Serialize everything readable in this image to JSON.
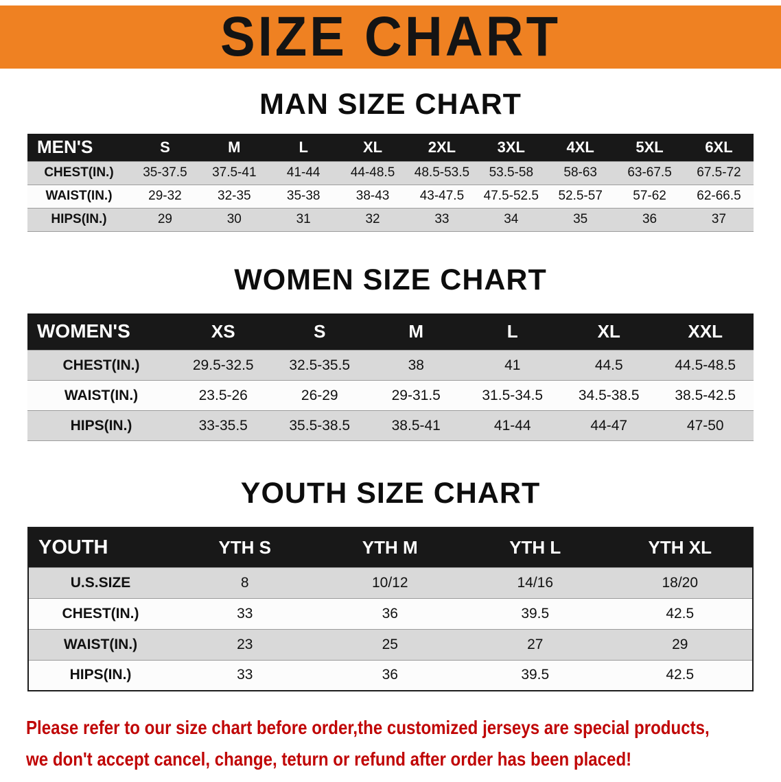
{
  "banner": {
    "title": "SIZE CHART",
    "bg_color": "#ef8122"
  },
  "sections": [
    {
      "id": "men",
      "heading": "MAN SIZE CHART",
      "table": {
        "header": [
          "MEN'S",
          "S",
          "M",
          "L",
          "XL",
          "2XL",
          "3XL",
          "4XL",
          "5XL",
          "6XL"
        ],
        "rows": [
          [
            "CHEST(IN.)",
            "35-37.5",
            "37.5-41",
            "41-44",
            "44-48.5",
            "48.5-53.5",
            "53.5-58",
            "58-63",
            "63-67.5",
            "67.5-72"
          ],
          [
            "WAIST(IN.)",
            "29-32",
            "32-35",
            "35-38",
            "38-43",
            "43-47.5",
            "47.5-52.5",
            "52.5-57",
            "57-62",
            "62-66.5"
          ],
          [
            "HIPS(IN.)",
            "29",
            "30",
            "31",
            "32",
            "33",
            "34",
            "35",
            "36",
            "37"
          ]
        ]
      }
    },
    {
      "id": "women",
      "heading": "WOMEN SIZE CHART",
      "table": {
        "header": [
          "WOMEN'S",
          "XS",
          "S",
          "M",
          "L",
          "XL",
          "XXL"
        ],
        "rows": [
          [
            "CHEST(IN.)",
            "29.5-32.5",
            "32.5-35.5",
            "38",
            "41",
            "44.5",
            "44.5-48.5"
          ],
          [
            "WAIST(IN.)",
            "23.5-26",
            "26-29",
            "29-31.5",
            "31.5-34.5",
            "34.5-38.5",
            "38.5-42.5"
          ],
          [
            "HIPS(IN.)",
            "33-35.5",
            "35.5-38.5",
            "38.5-41",
            "41-44",
            "44-47",
            "47-50"
          ]
        ]
      }
    },
    {
      "id": "youth",
      "heading": "YOUTH SIZE CHART",
      "table": {
        "header": [
          "YOUTH",
          "YTH S",
          "YTH M",
          "YTH L",
          "YTH XL"
        ],
        "rows": [
          [
            "U.S.SIZE",
            "8",
            "10/12",
            "14/16",
            "18/20"
          ],
          [
            "CHEST(IN.)",
            "33",
            "36",
            "39.5",
            "42.5"
          ],
          [
            "WAIST(IN.)",
            "23",
            "25",
            "27",
            "29"
          ],
          [
            "HIPS(IN.)",
            "33",
            "36",
            "39.5",
            "42.5"
          ]
        ]
      }
    }
  ],
  "footer_note": {
    "line1": "Please refer to our size chart before order,the customized jerseys are special products,",
    "line2": "we don't accept cancel, change, teturn or refund after order has been placed!",
    "text_color": "#c00505"
  }
}
